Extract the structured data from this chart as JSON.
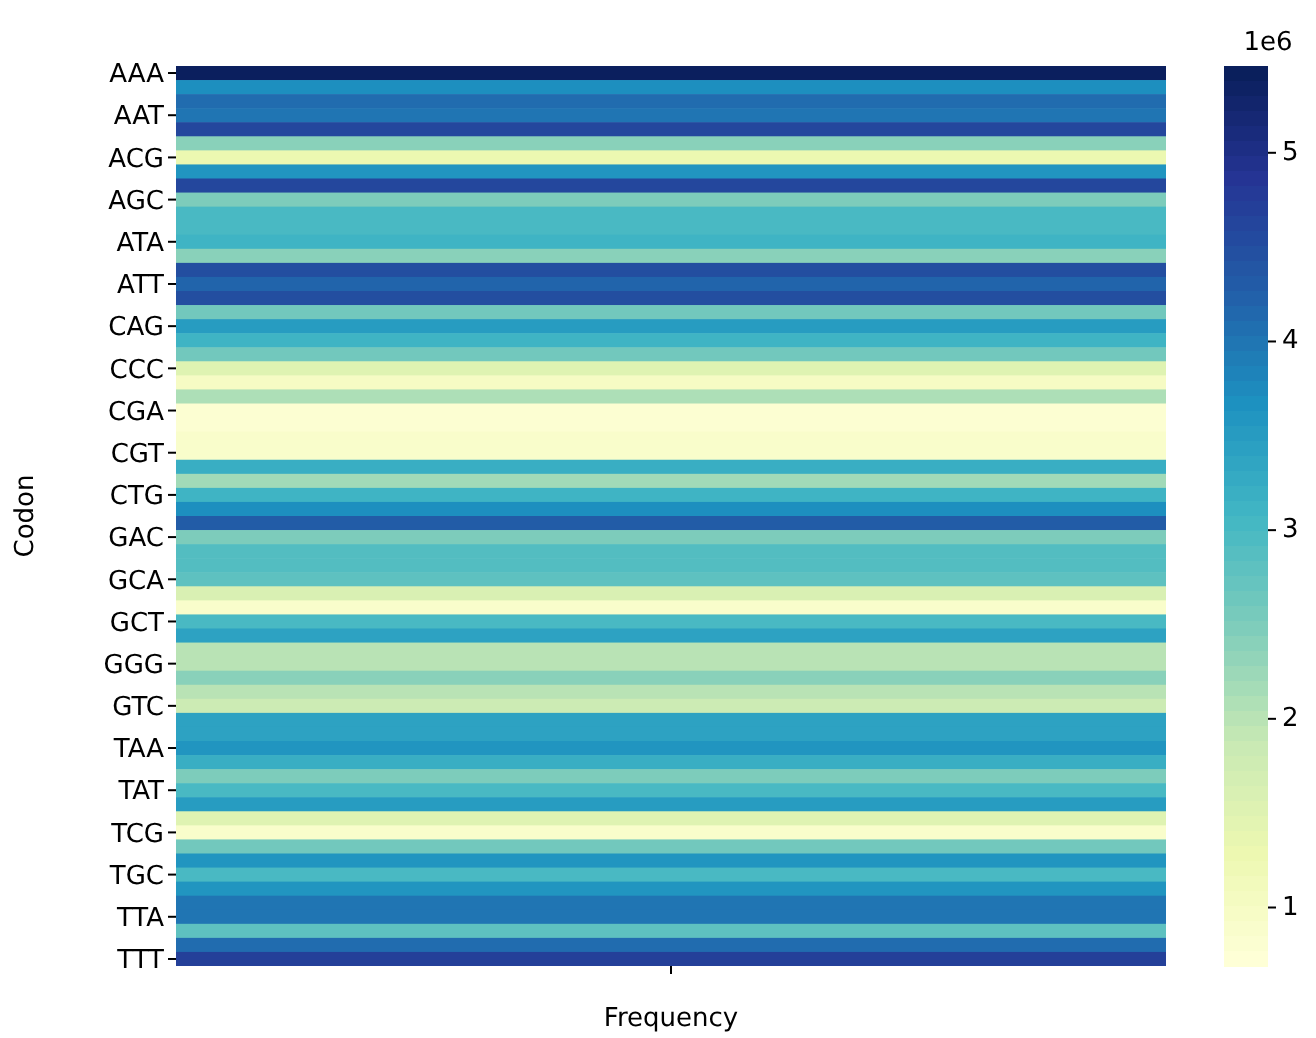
{
  "chart_data": {
    "type": "heatmap",
    "xlabel": "Frequency",
    "ylabel": "Codon",
    "categories": [
      null
    ],
    "y_categories": [
      "AAA",
      null,
      null,
      "AAT",
      null,
      null,
      "ACG",
      null,
      null,
      "AGC",
      null,
      null,
      "ATA",
      null,
      null,
      "ATT",
      null,
      null,
      "CAG",
      null,
      null,
      "CCC",
      null,
      null,
      "CGA",
      null,
      null,
      "CGT",
      null,
      null,
      "CTG",
      null,
      null,
      "GAC",
      null,
      null,
      "GCA",
      null,
      null,
      "GCT",
      null,
      null,
      "GGG",
      null,
      null,
      "GTC",
      null,
      null,
      "TAA",
      null,
      null,
      "TAT",
      null,
      null,
      "TCG",
      null,
      null,
      "TGC",
      null,
      null,
      "TTA",
      null,
      null,
      "TTT"
    ],
    "cells": [
      [
        5.4
      ],
      [
        3.7
      ],
      [
        4.1
      ],
      [
        4.0
      ],
      [
        4.6
      ],
      [
        2.4
      ],
      [
        1.3
      ],
      [
        3.6
      ],
      [
        4.6
      ],
      [
        2.5
      ],
      [
        3.0
      ],
      [
        3.0
      ],
      [
        3.1
      ],
      [
        2.4
      ],
      [
        4.5
      ],
      [
        4.2
      ],
      [
        4.5
      ],
      [
        2.6
      ],
      [
        3.5
      ],
      [
        3.1
      ],
      [
        2.6
      ],
      [
        1.5
      ],
      [
        1.0
      ],
      [
        2.1
      ],
      [
        0.8
      ],
      [
        0.8
      ],
      [
        0.9
      ],
      [
        0.9
      ],
      [
        3.2
      ],
      [
        2.2
      ],
      [
        3.1
      ],
      [
        3.7
      ],
      [
        4.3
      ],
      [
        2.5
      ],
      [
        2.9
      ],
      [
        2.9
      ],
      [
        2.8
      ],
      [
        1.6
      ],
      [
        0.9
      ],
      [
        3.0
      ],
      [
        3.4
      ],
      [
        2.0
      ],
      [
        2.0
      ],
      [
        2.4
      ],
      [
        2.0
      ],
      [
        1.8
      ],
      [
        3.4
      ],
      [
        3.4
      ],
      [
        3.6
      ],
      [
        3.2
      ],
      [
        2.5
      ],
      [
        3.0
      ],
      [
        3.5
      ],
      [
        1.5
      ],
      [
        0.9
      ],
      [
        2.6
      ],
      [
        3.6
      ],
      [
        3.0
      ],
      [
        3.6
      ],
      [
        4.0
      ],
      [
        4.0
      ],
      [
        2.8
      ],
      [
        4.1
      ],
      [
        4.7
      ]
    ],
    "clim": [
      0.69,
      5.46
    ],
    "cticks": [
      1,
      2,
      3,
      4,
      5
    ],
    "annotations": [
      "1e6"
    ]
  }
}
